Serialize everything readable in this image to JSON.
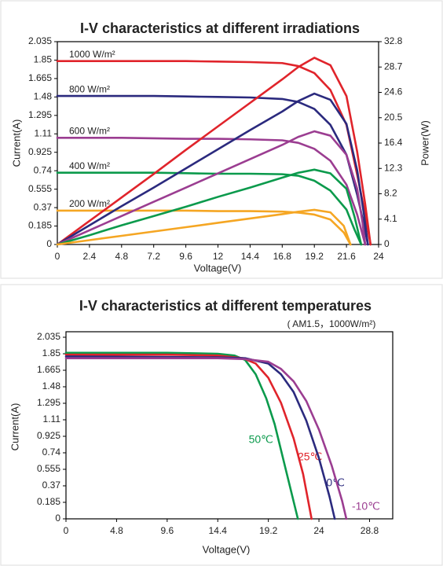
{
  "chart_data": [
    {
      "type": "line",
      "title": "I-V characteristics at different irradiations",
      "x_label": "Voltage(V)",
      "y_label": "Current(A)",
      "y2_label": "Power(W)",
      "xlim": [
        0,
        24
      ],
      "xticks": [
        0,
        2.4,
        4.8,
        7.2,
        9.6,
        12,
        14.4,
        16.8,
        19.2,
        21.6,
        24
      ],
      "ylim": [
        0,
        2.035
      ],
      "yticks": [
        0,
        0.185,
        0.37,
        0.555,
        0.74,
        0.925,
        1.11,
        1.295,
        1.48,
        1.665,
        1.85,
        2.035
      ],
      "y2lim": [
        0,
        32.8
      ],
      "y2ticks": [
        0,
        4.1,
        8.2,
        12.3,
        16.4,
        20.5,
        24.6,
        28.7,
        32.8
      ],
      "series": [
        {
          "name": "1000 W/m²",
          "color": "#e0242b",
          "x": [
            0,
            2.4,
            4.8,
            7.2,
            9.6,
            12,
            14.4,
            16.8,
            18,
            19.2,
            20.4,
            21.6,
            22.4,
            23,
            23.4
          ],
          "values": [
            1.84,
            1.84,
            1.84,
            1.84,
            1.84,
            1.835,
            1.83,
            1.82,
            1.79,
            1.72,
            1.55,
            1.2,
            0.7,
            0.3,
            0
          ]
        },
        {
          "name": "800 W/m²",
          "color": "#2b2a7e",
          "x": [
            0,
            2.4,
            4.8,
            7.2,
            9.6,
            12,
            14.4,
            16.8,
            18,
            19.2,
            20.4,
            21.6,
            22.4,
            22.9,
            23.2
          ],
          "values": [
            1.49,
            1.49,
            1.49,
            1.49,
            1.485,
            1.48,
            1.475,
            1.46,
            1.43,
            1.36,
            1.2,
            0.9,
            0.5,
            0.2,
            0
          ]
        },
        {
          "name": "600 W/m²",
          "color": "#9b3d91",
          "x": [
            0,
            2.4,
            4.8,
            7.2,
            9.6,
            12,
            14.4,
            16.8,
            18,
            19.2,
            20.4,
            21.6,
            22.4,
            23.0
          ],
          "values": [
            1.07,
            1.07,
            1.07,
            1.065,
            1.06,
            1.06,
            1.055,
            1.045,
            1.02,
            0.96,
            0.84,
            0.6,
            0.3,
            0
          ]
        },
        {
          "name": "400 W/m²",
          "color": "#0b9a4c",
          "x": [
            0,
            2.4,
            4.8,
            7.2,
            9.6,
            12,
            14.4,
            16.8,
            18,
            19.2,
            20.4,
            21.6,
            22.2,
            22.7
          ],
          "values": [
            0.72,
            0.72,
            0.72,
            0.72,
            0.715,
            0.71,
            0.71,
            0.705,
            0.69,
            0.64,
            0.54,
            0.35,
            0.15,
            0
          ]
        },
        {
          "name": "200 W/m²",
          "color": "#f5a623",
          "x": [
            0,
            2.4,
            4.8,
            7.2,
            9.6,
            12,
            14.4,
            16.8,
            18,
            19.2,
            20.4,
            21.4,
            21.9
          ],
          "values": [
            0.34,
            0.34,
            0.34,
            0.34,
            0.34,
            0.335,
            0.335,
            0.33,
            0.32,
            0.3,
            0.25,
            0.12,
            0
          ]
        },
        {
          "color": "#e0242b",
          "axis": "y2",
          "x": [
            0,
            2.4,
            4.8,
            7.2,
            9.6,
            12,
            14.4,
            16.8,
            18,
            19.2,
            20.4,
            21.6,
            22.4,
            23,
            23.4
          ],
          "values": [
            0,
            3.8,
            7.6,
            11.4,
            15.3,
            19.1,
            22.9,
            26.7,
            28.7,
            30.2,
            29,
            24,
            15,
            6.5,
            0
          ]
        },
        {
          "color": "#2b2a7e",
          "axis": "y2",
          "x": [
            0,
            2.4,
            4.8,
            7.2,
            9.6,
            12,
            14.4,
            16.8,
            18,
            19.2,
            20.4,
            21.6,
            22.4,
            22.9,
            23.2
          ],
          "values": [
            0,
            3.1,
            6.2,
            9.2,
            12.3,
            15.4,
            18.5,
            21.5,
            23.2,
            24.4,
            23.4,
            19.5,
            12,
            5,
            0
          ]
        },
        {
          "color": "#9b3d91",
          "axis": "y2",
          "x": [
            0,
            2.4,
            4.8,
            7.2,
            9.6,
            12,
            14.4,
            16.8,
            18,
            19.2,
            20.4,
            21.6,
            22.4,
            22.8,
            23.0
          ],
          "values": [
            0,
            2.3,
            4.6,
            6.9,
            9.2,
            11.5,
            13.8,
            16.1,
            17.4,
            18.3,
            17.6,
            14.5,
            9,
            3.5,
            0
          ]
        },
        {
          "color": "#0b9a4c",
          "axis": "y2",
          "x": [
            0,
            2.4,
            4.8,
            7.2,
            9.6,
            12,
            14.4,
            16.8,
            18,
            19.2,
            20.4,
            21.6,
            22.2,
            22.7
          ],
          "values": [
            0,
            1.5,
            3.1,
            4.6,
            6.1,
            7.7,
            9.2,
            10.8,
            11.6,
            12.1,
            11.5,
            9,
            4.5,
            0
          ]
        },
        {
          "color": "#f5a623",
          "axis": "y2",
          "x": [
            0,
            2.4,
            4.8,
            7.2,
            9.6,
            12,
            14.4,
            16.8,
            18,
            19.2,
            20.4,
            21.4,
            21.9
          ],
          "values": [
            0,
            0.7,
            1.4,
            2.1,
            2.8,
            3.5,
            4.2,
            4.9,
            5.3,
            5.6,
            5.2,
            3,
            0
          ]
        }
      ]
    },
    {
      "type": "line",
      "title": "I-V characteristics at different temperatures",
      "subtitle": "( AM1.5，1000W/m²)",
      "x_label": "Voltage(V)",
      "y_label": "Current(A)",
      "xlim": [
        0,
        31
      ],
      "xticks": [
        0,
        4.8,
        9.6,
        14.4,
        19.2,
        24,
        28.8
      ],
      "ylim": [
        0,
        2.035
      ],
      "yticks": [
        0,
        0.185,
        0.37,
        0.555,
        0.74,
        0.925,
        1.11,
        1.295,
        1.48,
        1.665,
        1.85,
        2.035
      ],
      "series": [
        {
          "name": "50℃",
          "color": "#0b9a4c",
          "x": [
            0,
            9.6,
            14.4,
            16,
            17,
            18,
            19,
            19.8,
            20.9,
            22
          ],
          "values": [
            1.86,
            1.86,
            1.85,
            1.83,
            1.78,
            1.62,
            1.35,
            1.06,
            0.53,
            0
          ]
        },
        {
          "name": "25℃",
          "color": "#e0242b",
          "x": [
            0,
            9.6,
            14.4,
            16.8,
            18,
            19.2,
            20.4,
            21.6,
            22.5,
            23.3
          ],
          "values": [
            1.84,
            1.84,
            1.83,
            1.8,
            1.74,
            1.58,
            1.3,
            0.9,
            0.5,
            0
          ]
        },
        {
          "name": "0℃",
          "color": "#2b2a7e",
          "x": [
            0,
            14.4,
            17,
            19.2,
            20.4,
            21.6,
            22.8,
            24,
            25,
            25.5
          ],
          "values": [
            1.82,
            1.81,
            1.8,
            1.74,
            1.62,
            1.42,
            1.1,
            0.68,
            0.25,
            0
          ]
        },
        {
          "name": "-10℃",
          "color": "#9b3d91",
          "x": [
            0,
            14.4,
            17,
            19.2,
            20.4,
            21.6,
            22.8,
            24,
            25.2,
            26.2,
            26.6
          ],
          "values": [
            1.8,
            1.8,
            1.79,
            1.76,
            1.68,
            1.54,
            1.32,
            1.0,
            0.6,
            0.2,
            0
          ]
        }
      ]
    }
  ]
}
